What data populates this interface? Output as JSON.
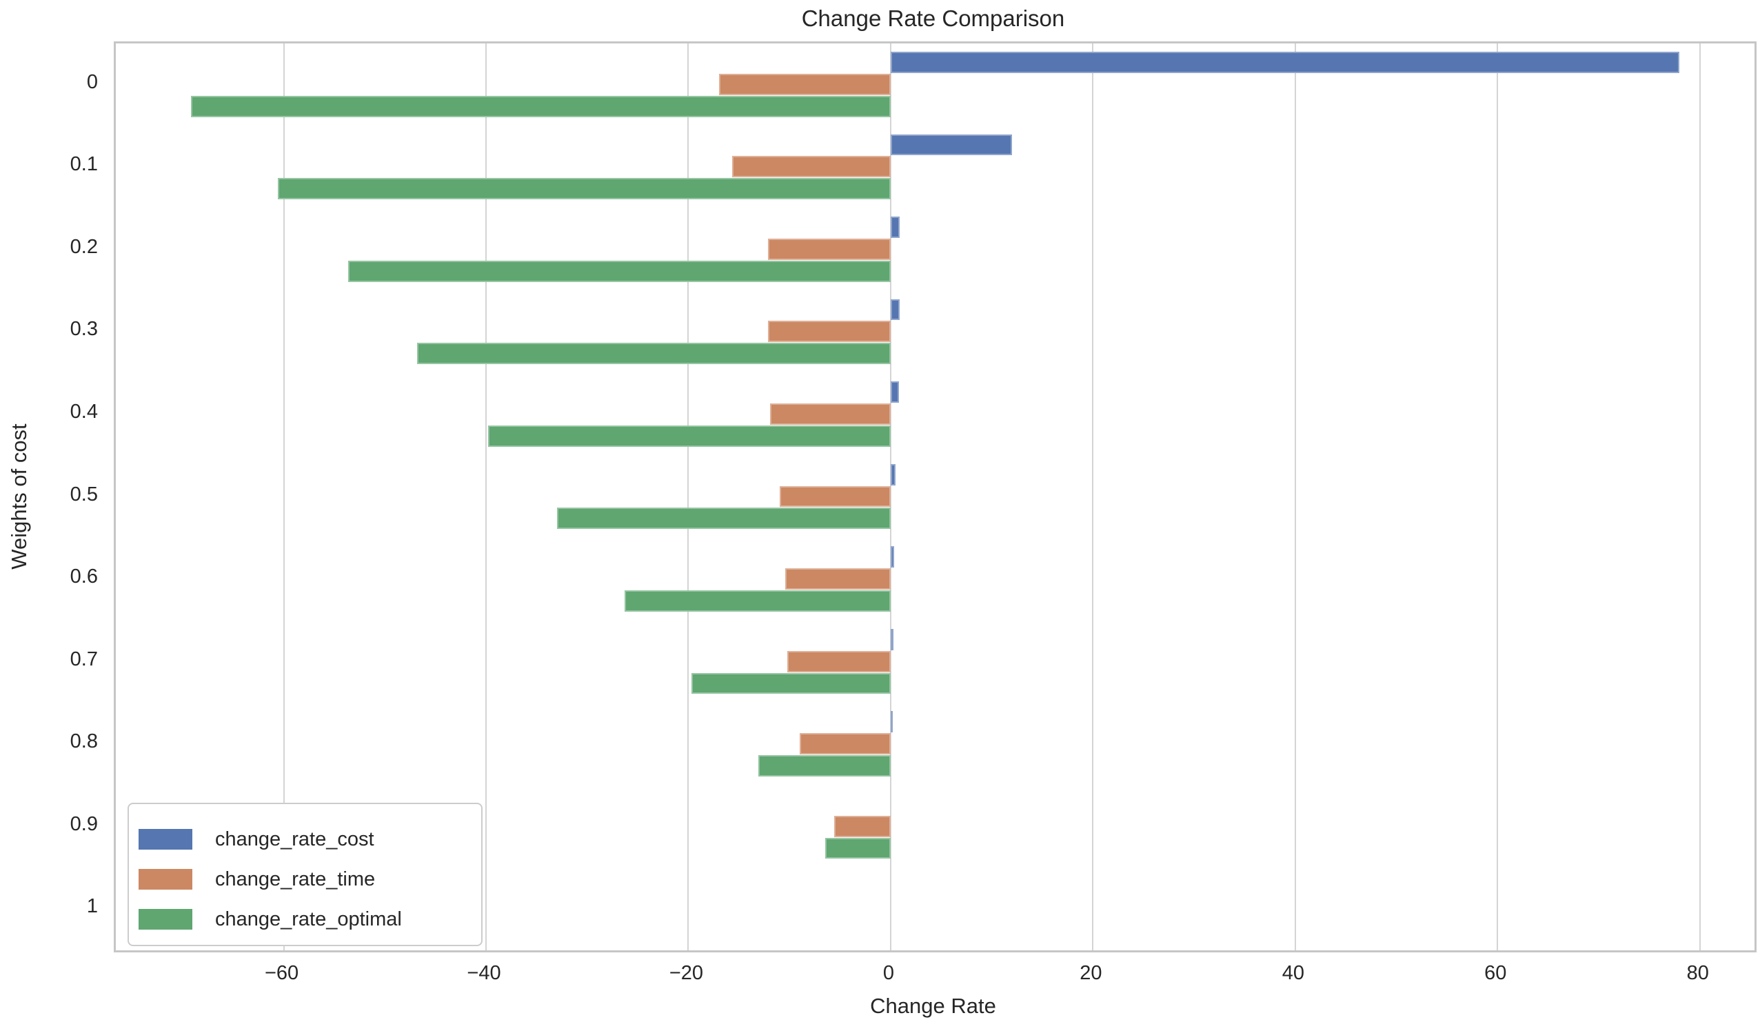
{
  "title": "Change Rate Comparison",
  "axes": {
    "xlabel": "Change Rate",
    "ylabel": "Weights of cost"
  },
  "chart_data": {
    "type": "bar",
    "orientation": "horizontal",
    "title": "Change Rate Comparison",
    "xlabel": "Change Rate",
    "ylabel": "Weights of cost",
    "categories": [
      "0",
      "0.1",
      "0.2",
      "0.3",
      "0.4",
      "0.5",
      "0.6",
      "0.7",
      "0.8",
      "0.9",
      "1"
    ],
    "series": [
      {
        "name": "change_rate_cost",
        "color": "#5576B1",
        "values": [
          78,
          12,
          0.9,
          0.9,
          0.8,
          0.5,
          0.35,
          0.3,
          0.2,
          0,
          0
        ]
      },
      {
        "name": "change_rate_time",
        "color": "#CC8863",
        "values": [
          -17,
          -15.7,
          -12.1,
          -12.1,
          -11.9,
          -11,
          -10.4,
          -10.2,
          -9,
          -5.6,
          0
        ]
      },
      {
        "name": "change_rate_optimal",
        "color": "#5FA671",
        "values": [
          -69.2,
          -60.6,
          -53.6,
          -46.8,
          -39.8,
          -33,
          -26.3,
          -19.7,
          -13.1,
          -6.5,
          0
        ]
      }
    ],
    "xlim": [
      -76.6,
      85.4
    ],
    "xticks": [
      -60,
      -40,
      -20,
      0,
      20,
      40,
      60,
      80
    ],
    "xtick_labels": [
      "−60",
      "−40",
      "−20",
      "0",
      "20",
      "40",
      "60",
      "80"
    ],
    "grid": true,
    "legend_position": "lower left",
    "background": "#ffffff",
    "grid_color": "#d4d4d4",
    "spine_color": "#c6c6c6",
    "text_color": "#262626"
  }
}
